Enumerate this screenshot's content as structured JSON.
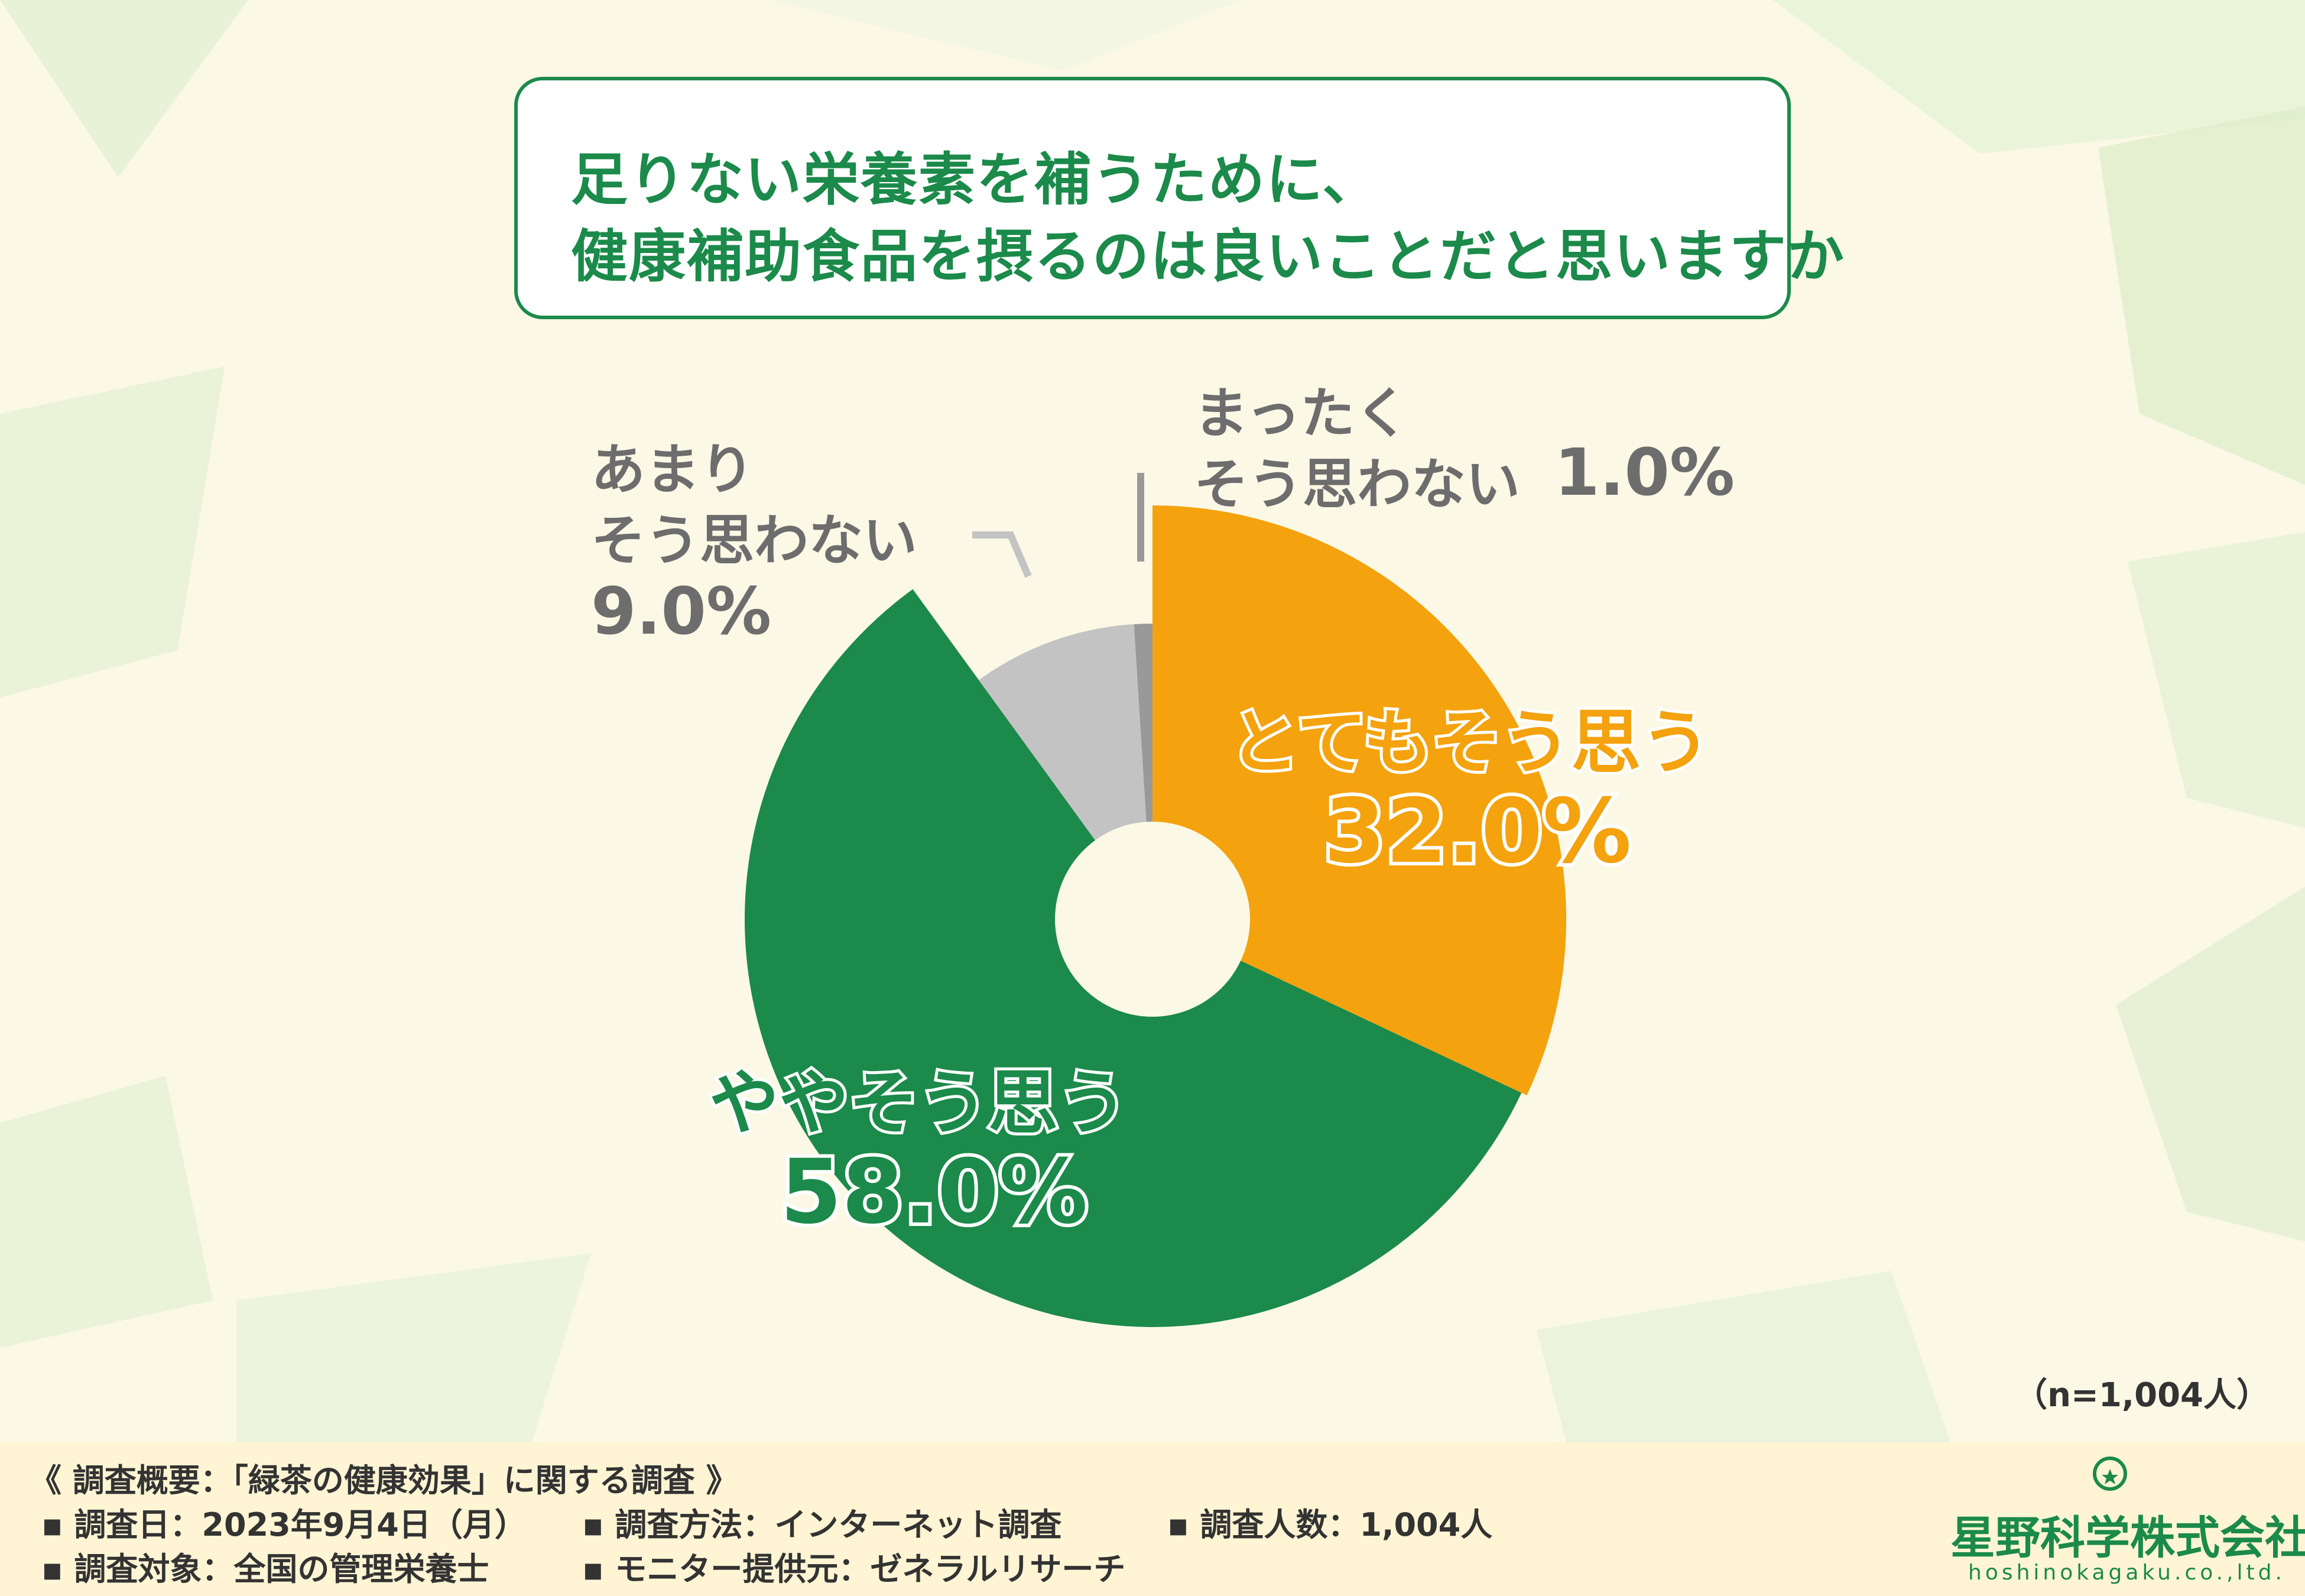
{
  "title": {
    "line1": "足りない栄養素を補うために、",
    "line2": "健康補助食品を摂るのは良いことだと思いますか"
  },
  "chart_data": {
    "type": "pie",
    "slices": [
      {
        "label": "とてもそう思う",
        "value": 32.0,
        "value_text": "32.0%",
        "color": "#f4a20d"
      },
      {
        "label": "ややそう思う",
        "value": 58.0,
        "value_text": "58.0%",
        "color": "#1b8a4a"
      },
      {
        "label": "あまりそう思わない",
        "value": 9.0,
        "value_text": "9.0%",
        "color": "#c3c3c3"
      },
      {
        "label": "まったくそう思わない",
        "value": 1.0,
        "value_text": "1.0%",
        "color": "#999999"
      }
    ]
  },
  "labels": {
    "totemo_label": "とてもそう思う",
    "totemo_value": "32.0%",
    "yaya_label": "ややそう思う",
    "yaya_value": "58.0%",
    "amari_line1": "あまり",
    "amari_line2": "そう思わない",
    "amari_value": "9.0%",
    "mattaku_line1": "まったく",
    "mattaku_line2": "そう思わない",
    "mattaku_value": "1.0%"
  },
  "sample_note": "（n=1,004人）",
  "survey": {
    "heading": "《 調査概要：「緑茶の健康効果」に関する調査 》",
    "date": "▪ 調査日：2023年9月4日（月）",
    "method": "▪ 調査方法：インターネット調査",
    "count": "▪ 調査人数：1,004人",
    "target": "▪ 調査対象：全国の管理栄養士",
    "provider": "▪ モニター提供元：ゼネラルリサーチ"
  },
  "logo": {
    "name": "星野科学株式会社",
    "sub": "hoshinokagaku.co.,ltd."
  },
  "colors": {
    "brand_green": "#1b8a4a",
    "orange": "#f4a20d",
    "gray_light": "#c3c3c3",
    "gray_dark": "#999999",
    "label_gray": "#6d6d6d"
  }
}
